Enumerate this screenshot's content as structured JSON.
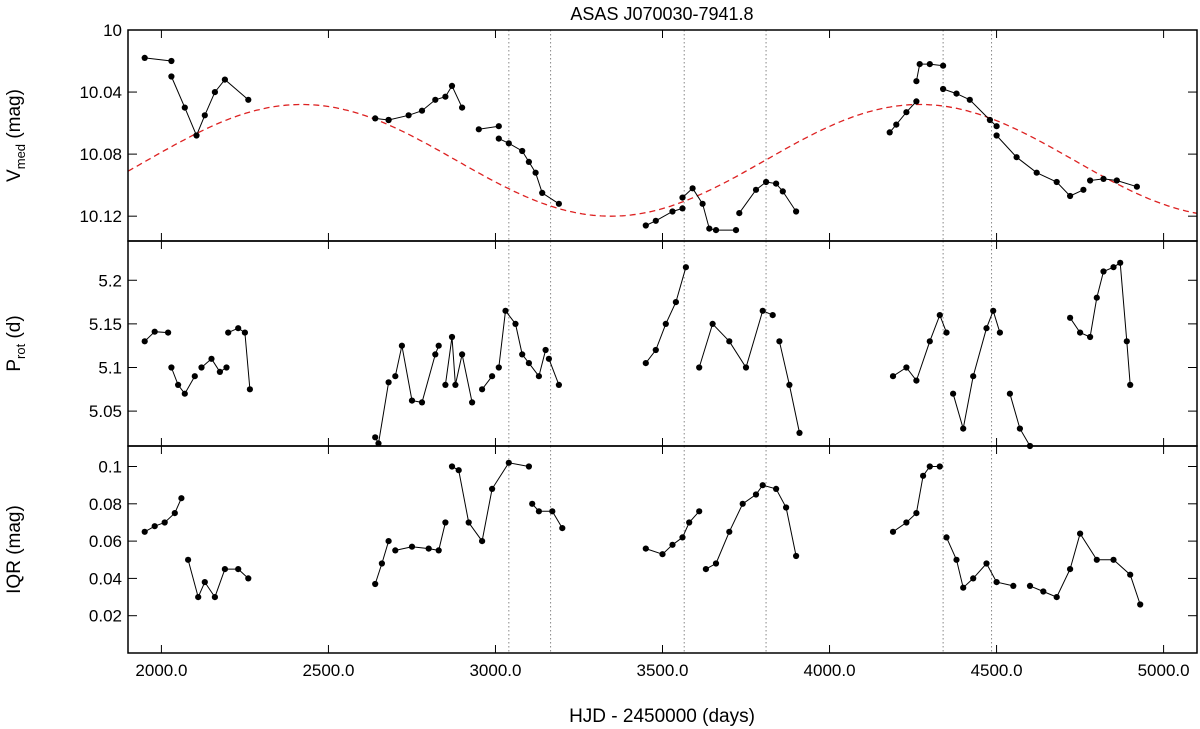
{
  "chart_data": {
    "type": "scatter",
    "title": "ASAS J070030-7941.8",
    "xlabel": "HJD - 2450000 (days)",
    "xlim": [
      1900,
      5100
    ],
    "x_ticks": [
      "2000.0",
      "2500.0",
      "3000.0",
      "3500.0",
      "4000.0",
      "4500.0",
      "5000.0"
    ],
    "x_tick_values": [
      2000,
      2500,
      3000,
      3500,
      4000,
      4500,
      5000
    ],
    "vertical_markers": [
      3040,
      3165,
      3565,
      3810,
      4340,
      4485
    ],
    "panels": [
      {
        "ylabel_main": "V",
        "ylabel_sub": "med",
        "ylabel_unit": "(mag)",
        "ylim": [
          10,
          10.136
        ],
        "y_inverted": true,
        "y_ticks": [
          "10",
          "10.04",
          "10.08",
          "10.12"
        ],
        "y_tick_values": [
          10,
          10.04,
          10.08,
          10.12
        ],
        "model_curve": {
          "type": "sinusoid",
          "mean": 10.084,
          "amplitude": 0.036,
          "period": 1850,
          "max_brightness_at": 2420,
          "color": "#dd2222"
        },
        "series": [
          {
            "x": [
              1950,
              2030
            ],
            "y": [
              10.018,
              10.02
            ]
          },
          {
            "x": [
              2030,
              2070,
              2105,
              2130,
              2160,
              2190,
              2260
            ],
            "y": [
              10.03,
              10.05,
              10.068,
              10.055,
              10.04,
              10.032,
              10.045
            ]
          },
          {
            "x": [
              2640,
              2680
            ],
            "y": [
              10.057,
              10.058
            ]
          },
          {
            "x": [
              2680,
              2740,
              2780,
              2820,
              2850,
              2870,
              2900
            ],
            "y": [
              10.058,
              10.055,
              10.052,
              10.045,
              10.043,
              10.036,
              10.05
            ]
          },
          {
            "x": [
              2950,
              3010
            ],
            "y": [
              10.064,
              10.062
            ]
          },
          {
            "x": [
              3010,
              3040,
              3080,
              3100,
              3120,
              3140,
              3190
            ],
            "y": [
              10.07,
              10.073,
              10.078,
              10.085,
              10.092,
              10.105,
              10.112
            ]
          },
          {
            "x": [
              3450,
              3480,
              3530,
              3560
            ],
            "y": [
              10.126,
              10.123,
              10.117,
              10.115
            ]
          },
          {
            "x": [
              3560,
              3590,
              3620,
              3640,
              3660,
              3720
            ],
            "y": [
              10.108,
              10.102,
              10.112,
              10.128,
              10.129,
              10.129
            ]
          },
          {
            "x": [
              3730,
              3780,
              3810,
              3840,
              3860,
              3900
            ],
            "y": [
              10.118,
              10.103,
              10.098,
              10.099,
              10.104,
              10.117
            ]
          },
          {
            "x": [
              4180,
              4200,
              4230,
              4260
            ],
            "y": [
              10.066,
              10.061,
              10.053,
              10.046
            ]
          },
          {
            "x": [
              4260,
              4270,
              4300,
              4340
            ],
            "y": [
              10.033,
              10.022,
              10.022,
              10.023
            ]
          },
          {
            "x": [
              4340,
              4380,
              4420,
              4480,
              4500
            ],
            "y": [
              10.038,
              10.041,
              10.045,
              10.058,
              10.062
            ]
          },
          {
            "x": [
              4500,
              4560,
              4620,
              4680,
              4720,
              4760
            ],
            "y": [
              10.068,
              10.082,
              10.092,
              10.098,
              10.107,
              10.103
            ]
          },
          {
            "x": [
              4780,
              4820,
              4860,
              4920
            ],
            "y": [
              10.097,
              10.096,
              10.097,
              10.101
            ]
          }
        ]
      },
      {
        "ylabel_main": "P",
        "ylabel_sub": "rot",
        "ylabel_unit": "(d)",
        "ylim": [
          5.01,
          5.245
        ],
        "y_inverted": false,
        "y_ticks": [
          "5.05",
          "5.1",
          "5.15",
          "5.2"
        ],
        "y_tick_values": [
          5.05,
          5.1,
          5.15,
          5.2
        ],
        "series": [
          {
            "x": [
              1950,
              1980,
              2020
            ],
            "y": [
              5.13,
              5.141,
              5.14
            ]
          },
          {
            "x": [
              2030,
              2050,
              2070,
              2100
            ],
            "y": [
              5.1,
              5.08,
              5.07,
              5.09
            ]
          },
          {
            "x": [
              2120,
              2150,
              2175,
              2195
            ],
            "y": [
              5.1,
              5.11,
              5.095,
              5.1
            ]
          },
          {
            "x": [
              2200,
              2230,
              2250,
              2265
            ],
            "y": [
              5.14,
              5.145,
              5.14,
              5.075
            ]
          },
          {
            "x": [
              2640,
              2650,
              2680
            ],
            "y": [
              5.02,
              5.013,
              5.083
            ]
          },
          {
            "x": [
              2700,
              2720,
              2750,
              2780,
              2820,
              2830
            ],
            "y": [
              5.09,
              5.125,
              5.062,
              5.06,
              5.115,
              5.125
            ]
          },
          {
            "x": [
              2850,
              2870,
              2880,
              2900,
              2930
            ],
            "y": [
              5.08,
              5.135,
              5.08,
              5.115,
              5.06
            ]
          },
          {
            "x": [
              2960,
              2990
            ],
            "y": [
              5.075,
              5.09
            ]
          },
          {
            "x": [
              3010,
              3030,
              3060,
              3080,
              3100,
              3130,
              3150
            ],
            "y": [
              5.1,
              5.165,
              5.15,
              5.115,
              5.105,
              5.09,
              5.12
            ]
          },
          {
            "x": [
              3160,
              3190
            ],
            "y": [
              5.11,
              5.08
            ]
          },
          {
            "x": [
              3450,
              3480,
              3510,
              3540,
              3570
            ],
            "y": [
              5.105,
              5.12,
              5.15,
              5.175,
              5.215
            ]
          },
          {
            "x": [
              3610,
              3650,
              3700,
              3750,
              3800,
              3830
            ],
            "y": [
              5.1,
              5.15,
              5.13,
              5.1,
              5.165,
              5.16
            ]
          },
          {
            "x": [
              3850,
              3880,
              3910
            ],
            "y": [
              5.13,
              5.08,
              5.025
            ]
          },
          {
            "x": [
              4190,
              4230,
              4260,
              4300,
              4330,
              4350
            ],
            "y": [
              5.09,
              5.1,
              5.085,
              5.13,
              5.16,
              5.14
            ]
          },
          {
            "x": [
              4370,
              4400,
              4430,
              4470,
              4490,
              4510
            ],
            "y": [
              5.07,
              5.03,
              5.09,
              5.145,
              5.165,
              5.14
            ]
          },
          {
            "x": [
              4540,
              4570,
              4600
            ],
            "y": [
              5.07,
              5.03,
              5.01
            ]
          },
          {
            "x": [
              4720,
              4750,
              4780,
              4800,
              4820,
              4850,
              4870,
              4890,
              4900
            ],
            "y": [
              5.157,
              5.14,
              5.135,
              5.18,
              5.21,
              5.215,
              5.22,
              5.13,
              5.08
            ]
          }
        ]
      },
      {
        "ylabel_main": "IQR",
        "ylabel_sub": "",
        "ylabel_unit": "(mag)",
        "ylim": [
          0.0,
          0.111
        ],
        "y_inverted": false,
        "y_ticks": [
          "0.02",
          "0.04",
          "0.06",
          "0.08",
          "0.1"
        ],
        "y_tick_values": [
          0.02,
          0.04,
          0.06,
          0.08,
          0.1
        ],
        "series": [
          {
            "x": [
              1950,
              1980,
              2010,
              2040,
              2060
            ],
            "y": [
              0.065,
              0.068,
              0.07,
              0.075,
              0.083
            ]
          },
          {
            "x": [
              2080,
              2110,
              2130,
              2160,
              2190,
              2230,
              2260
            ],
            "y": [
              0.05,
              0.03,
              0.038,
              0.03,
              0.045,
              0.045,
              0.04
            ]
          },
          {
            "x": [
              2640,
              2660,
              2680
            ],
            "y": [
              0.037,
              0.048,
              0.06
            ]
          },
          {
            "x": [
              2700,
              2750,
              2800,
              2830,
              2850
            ],
            "y": [
              0.055,
              0.057,
              0.056,
              0.055,
              0.07
            ]
          },
          {
            "x": [
              2870,
              2890,
              2920,
              2960,
              2990,
              3040,
              3100
            ],
            "y": [
              0.1,
              0.098,
              0.07,
              0.06,
              0.088,
              0.102,
              0.1
            ]
          },
          {
            "x": [
              3110,
              3130,
              3170,
              3200
            ],
            "y": [
              0.08,
              0.076,
              0.076,
              0.067
            ]
          },
          {
            "x": [
              3450,
              3500,
              3530,
              3560,
              3580,
              3610
            ],
            "y": [
              0.056,
              0.053,
              0.058,
              0.062,
              0.07,
              0.076
            ]
          },
          {
            "x": [
              3630,
              3660,
              3700,
              3740,
              3780,
              3800,
              3840,
              3870,
              3900
            ],
            "y": [
              0.045,
              0.048,
              0.065,
              0.08,
              0.085,
              0.09,
              0.088,
              0.078,
              0.052
            ]
          },
          {
            "x": [
              4190,
              4230,
              4260,
              4280,
              4300,
              4330
            ],
            "y": [
              0.065,
              0.07,
              0.075,
              0.095,
              0.1,
              0.1
            ]
          },
          {
            "x": [
              4350,
              4380,
              4400,
              4430,
              4470,
              4500,
              4550
            ],
            "y": [
              0.062,
              0.05,
              0.035,
              0.04,
              0.048,
              0.038,
              0.036
            ]
          },
          {
            "x": [
              4600,
              4640,
              4680,
              4720,
              4750,
              4800,
              4850,
              4900,
              4930
            ],
            "y": [
              0.036,
              0.033,
              0.03,
              0.045,
              0.064,
              0.05,
              0.05,
              0.042,
              0.026
            ]
          }
        ]
      }
    ]
  }
}
